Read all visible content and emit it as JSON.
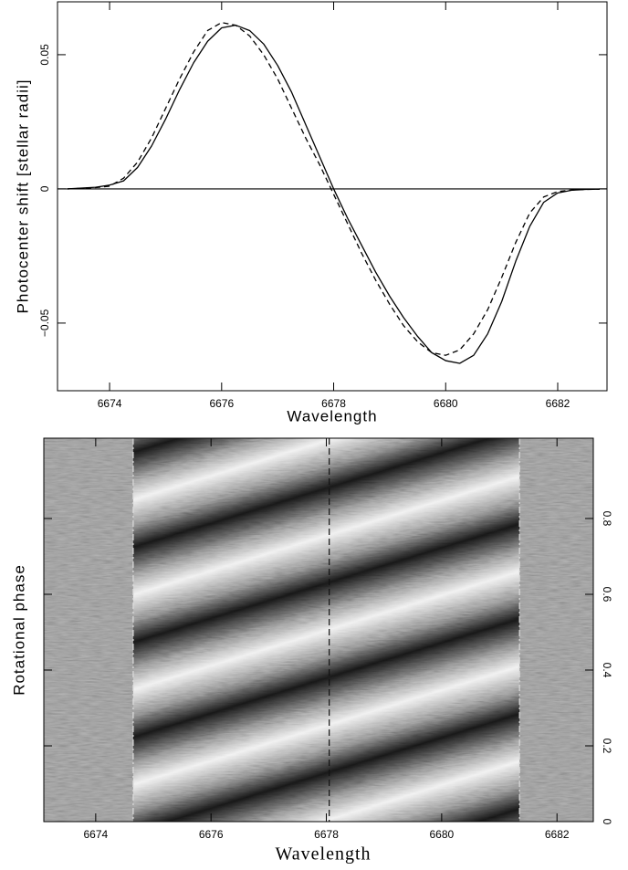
{
  "chart_data": [
    {
      "type": "line",
      "x_label": "Wavelength",
      "y_label": "Photocenter shift [stellar radii]",
      "x": [
        6673.25,
        6673.5,
        6673.75,
        6674,
        6674.25,
        6674.5,
        6674.75,
        6675,
        6675.25,
        6675.5,
        6675.75,
        6676,
        6676.25,
        6676.5,
        6676.75,
        6677,
        6677.25,
        6677.5,
        6677.75,
        6678,
        6678.25,
        6678.5,
        6678.75,
        6679,
        6679.25,
        6679.5,
        6679.75,
        6680,
        6680.25,
        6680.5,
        6680.75,
        6681,
        6681.25,
        6681.5,
        6681.75,
        6682,
        6682.25,
        6682.5,
        6682.75
      ],
      "series": [
        {
          "color": "#000000",
          "dash": false,
          "values": [
            0.0,
            0.0003,
            0.0006,
            0.0014,
            0.003,
            0.008,
            0.016,
            0.026,
            0.037,
            0.047,
            0.055,
            0.06,
            0.061,
            0.059,
            0.054,
            0.046,
            0.036,
            0.024,
            0.012,
            0.0,
            -0.011,
            -0.021,
            -0.031,
            -0.04,
            -0.048,
            -0.055,
            -0.061,
            -0.064,
            -0.065,
            -0.062,
            -0.054,
            -0.042,
            -0.027,
            -0.014,
            -0.005,
            -0.0015,
            -0.0005,
            -0.0002,
            -0.0001
          ]
        },
        {
          "color": "#000000",
          "dash": true,
          "values": [
            0.0,
            0.0002,
            0.0005,
            0.001,
            0.004,
            0.01,
            0.019,
            0.03,
            0.041,
            0.051,
            0.059,
            0.062,
            0.061,
            0.057,
            0.05,
            0.041,
            0.03,
            0.019,
            0.009,
            -0.002,
            -0.013,
            -0.024,
            -0.034,
            -0.043,
            -0.051,
            -0.057,
            -0.061,
            -0.062,
            -0.06,
            -0.054,
            -0.045,
            -0.033,
            -0.02,
            -0.009,
            -0.003,
            -0.001,
            -0.0004,
            -0.0002,
            -0.0001
          ]
        }
      ],
      "xlim": [
        6673.07,
        6682.88
      ],
      "ylim": [
        -0.0752,
        0.0697
      ],
      "xticks": [
        6674,
        6676,
        6678,
        6680,
        6682
      ],
      "yticks": [
        {
          "value": -0.05,
          "label": "−0.05"
        },
        0,
        0.05
      ],
      "y_axis_side": "left",
      "zero_line": true
    },
    {
      "type": "dynamic-spectrum",
      "x_label": "Wavelength",
      "y_label": "Rotational phase",
      "xlim": [
        6673.1,
        6682.63
      ],
      "ylim": [
        0,
        1.012
      ],
      "xticks": [
        6674,
        6676,
        6678,
        6680,
        6682
      ],
      "yticks": [
        0,
        0.2,
        0.4,
        0.6,
        0.8
      ],
      "y_axis_side": "right",
      "marker_lines": [
        {
          "x": 6674.65,
          "color": "#dddddd"
        },
        {
          "x": 6678.05,
          "color": "#111111"
        },
        {
          "x": 6681.35,
          "color": "#dddddd"
        }
      ]
    }
  ]
}
